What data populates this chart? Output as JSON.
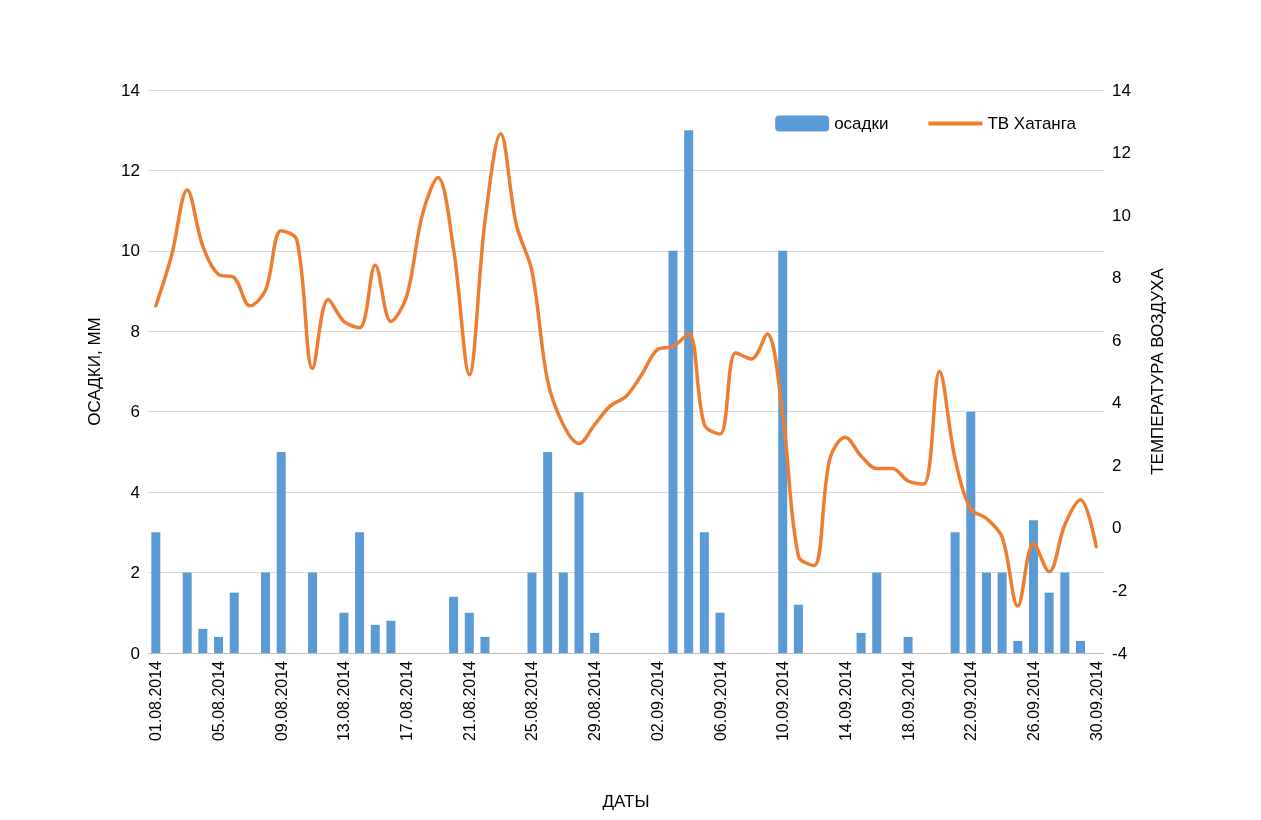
{
  "chart_data": {
    "type": "bar",
    "xlabel": "ДАТЫ",
    "ylabel": "ОСАДКИ, ММ",
    "y2label": "ТЕМПЕРАТУРА ВОЗДУХА",
    "categories": [
      "01.08.2014",
      null,
      null,
      null,
      "05.08.2014",
      null,
      null,
      null,
      "09.08.2014",
      null,
      null,
      null,
      "13.08.2014",
      null,
      null,
      null,
      "17.08.2014",
      null,
      null,
      null,
      "21.08.2014",
      null,
      null,
      null,
      "25.08.2014",
      null,
      null,
      null,
      "29.08.2014",
      null,
      null,
      null,
      "02.09.2014",
      null,
      null,
      null,
      "06.09.2014",
      null,
      null,
      null,
      "10.09.2014",
      null,
      null,
      null,
      "14.09.2014",
      null,
      null,
      null,
      "18.09.2014",
      null,
      null,
      null,
      "22.09.2014",
      null,
      null,
      null,
      "26.09.2014",
      null,
      null,
      null,
      "30.09.2014"
    ],
    "series": [
      {
        "name": "осадки",
        "color": "#5b9bd5",
        "values": [
          3,
          null,
          2,
          0.6,
          0.4,
          1.5,
          null,
          2,
          5,
          null,
          2,
          null,
          1,
          3,
          0.7,
          0.8,
          null,
          null,
          null,
          1.4,
          1,
          0.4,
          null,
          null,
          2,
          5,
          2,
          4,
          0.5,
          null,
          null,
          null,
          null,
          10,
          13,
          3,
          1,
          null,
          null,
          null,
          10,
          1.2,
          null,
          null,
          null,
          0.5,
          2,
          null,
          0.4,
          null,
          null,
          3,
          6,
          2,
          2,
          0.3,
          3.3,
          1.5,
          2,
          0.3,
          null
        ]
      },
      {
        "name": "ТВ Хатанга",
        "type": "line",
        "axis": "y2",
        "color": "#ed7d31",
        "values": [
          7.1,
          8.7,
          10.8,
          9.0,
          8.1,
          8.0,
          7.1,
          7.6,
          9.5,
          9.2,
          5.1,
          7.3,
          6.6,
          6.4,
          8.4,
          6.6,
          7.4,
          10.0,
          11.2,
          8.9,
          4.9,
          9.8,
          12.6,
          9.7,
          8.2,
          4.7,
          3.3,
          2.7,
          3.3,
          3.9,
          4.2,
          4.9,
          5.7,
          5.8,
          6.2,
          3.3,
          3.0,
          5.6,
          5.4,
          6.2,
          3.6,
          -0.9,
          -1.2,
          2.2,
          2.9,
          2.3,
          1.9,
          1.9,
          1.5,
          1.4,
          5.0,
          2.2,
          0.6,
          0.3,
          -0.3,
          -2.5,
          -0.5,
          -1.4,
          0.1,
          0.9,
          -0.6
        ]
      }
    ],
    "ylim": [
      0,
      14
    ],
    "yticks": [
      0,
      2,
      4,
      6,
      8,
      10,
      12,
      14
    ],
    "y2lim": [
      -4,
      14
    ],
    "y2ticks": [
      -4,
      -2,
      0,
      2,
      4,
      6,
      8,
      10,
      12,
      14
    ],
    "grid": "y",
    "legend": "top right",
    "marker": "none",
    "line_style": "solid"
  }
}
